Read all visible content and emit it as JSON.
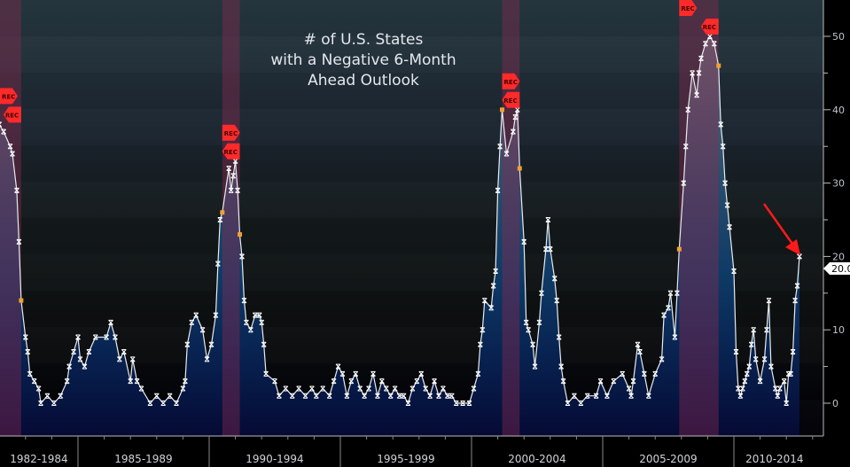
{
  "chart_data": {
    "type": "line",
    "title_lines": [
      "# of U.S. States",
      "with a Negative 6-Month",
      "Ahead Outlook"
    ],
    "xlabel": "",
    "ylabel": "",
    "ylim": [
      -4.5,
      59
    ],
    "y_ticks": [
      0,
      10,
      20,
      30,
      40,
      50
    ],
    "y_tick_labels": [
      "0",
      "10",
      "20",
      "30",
      "40",
      "50"
    ],
    "x_period_labels": [
      "1982-1984",
      "1985-1989",
      "1990-1994",
      "1995-1999",
      "2000-2004",
      "2005-2009",
      "2010-2014"
    ],
    "last_value_label": "20.0",
    "recession_flag_label": "REC",
    "recessions": [
      {
        "start": "1981-07",
        "end": "1982-11"
      },
      {
        "start": "1990-07",
        "end": "1991-03"
      },
      {
        "start": "2001-03",
        "end": "2001-11"
      },
      {
        "start": "2007-12",
        "end": "2009-06"
      }
    ],
    "colors": {
      "line": "#e8ecf0",
      "marker": "#ffffff",
      "recession_marker": "#f0a030",
      "recession_shade": "#8a2c50",
      "flag": "#ff2a2a",
      "arrow": "#ff1a1a"
    },
    "annotation": "red arrow pointing at latest value",
    "series": [
      {
        "x": [
          "1982-01",
          "1982-03",
          "1982-06",
          "1982-07",
          "1982-09",
          "1982-10",
          "1982-11",
          "1983-01",
          "1983-02",
          "1983-03",
          "1983-05",
          "1983-07",
          "1983-08",
          "1983-11",
          "1984-02",
          "1984-05",
          "1984-08",
          "1984-09",
          "1984-11",
          "1985-01",
          "1985-02",
          "1985-04",
          "1985-06",
          "1985-09",
          "1986-02",
          "1986-04",
          "1986-06",
          "1986-08",
          "1986-10",
          "1987-01",
          "1987-02",
          "1987-04",
          "1987-06",
          "1987-10",
          "1988-01",
          "1988-04",
          "1988-07",
          "1988-10",
          "1989-01",
          "1989-02",
          "1989-03",
          "1989-05",
          "1989-07",
          "1989-10",
          "1989-12",
          "1990-02",
          "1990-04",
          "1990-05",
          "1990-06",
          "1990-07",
          "1990-10",
          "1990-11",
          "1990-12",
          "1991-01",
          "1991-02",
          "1991-03",
          "1991-04",
          "1991-05",
          "1991-06",
          "1991-08",
          "1991-10",
          "1991-12",
          "1992-01",
          "1992-02",
          "1992-03",
          "1992-07",
          "1992-09",
          "1992-12",
          "1993-03",
          "1993-06",
          "1993-09",
          "1993-12",
          "1994-02",
          "1994-05",
          "1994-08",
          "1994-10",
          "1994-12",
          "1995-02",
          "1995-04",
          "1995-06",
          "1995-08",
          "1995-10",
          "1995-12",
          "1996-02",
          "1996-04",
          "1996-06",
          "1996-08",
          "1996-10",
          "1996-12",
          "1997-02",
          "1997-04",
          "1997-06",
          "1997-08",
          "1997-10",
          "1997-12",
          "1998-02",
          "1998-04",
          "1998-06",
          "1998-08",
          "1998-10",
          "1998-12",
          "1999-02",
          "1999-04",
          "1999-06",
          "1999-09",
          "1999-12",
          "2000-02",
          "2000-04",
          "2000-05",
          "2000-06",
          "2000-07",
          "2000-10",
          "2000-11",
          "2000-12",
          "2001-01",
          "2001-02",
          "2001-03",
          "2001-05",
          "2001-08",
          "2001-09",
          "2001-10",
          "2001-11",
          "2002-01",
          "2002-02",
          "2002-03",
          "2002-05",
          "2002-06",
          "2002-08",
          "2002-09",
          "2002-11",
          "2002-12",
          "2003-01",
          "2003-03",
          "2003-04",
          "2003-05",
          "2003-06",
          "2003-07",
          "2003-09",
          "2003-12",
          "2004-03",
          "2004-06",
          "2004-10",
          "2004-12",
          "2005-03",
          "2005-06",
          "2005-10",
          "2006-01",
          "2006-02",
          "2006-03",
          "2006-05",
          "2006-06",
          "2006-08",
          "2006-10",
          "2007-01",
          "2007-04",
          "2007-05",
          "2007-07",
          "2007-08",
          "2007-10",
          "2007-11",
          "2007-12",
          "2008-02",
          "2008-03",
          "2008-04",
          "2008-06",
          "2008-08",
          "2008-09",
          "2008-10",
          "2008-12",
          "2009-02",
          "2009-04",
          "2009-06",
          "2009-07",
          "2009-08",
          "2009-09",
          "2009-10",
          "2009-11",
          "2010-01",
          "2010-02",
          "2010-03",
          "2010-04",
          "2010-05",
          "2010-06",
          "2010-07",
          "2010-08",
          "2010-09",
          "2010-10",
          "2010-11",
          "2011-01",
          "2011-03",
          "2011-04",
          "2011-05",
          "2011-06",
          "2011-08",
          "2011-09",
          "2011-10",
          "2011-12",
          "2012-01",
          "2012-02",
          "2012-03",
          "2012-04",
          "2012-05",
          "2012-06",
          "2012-07"
        ],
        "y": [
          38,
          37,
          35,
          34,
          29,
          22,
          14,
          9,
          7,
          4,
          3,
          2,
          0,
          1,
          0,
          1,
          3,
          5,
          7,
          9,
          6,
          5,
          7,
          9,
          9,
          11,
          9,
          6,
          7,
          3,
          6,
          3,
          2,
          0,
          1,
          0,
          1,
          0,
          2,
          3,
          8,
          11,
          12,
          10,
          6,
          8,
          12,
          19,
          25,
          26,
          32,
          29,
          31,
          33,
          29,
          23,
          20,
          14,
          11,
          10,
          12,
          12,
          11,
          8,
          4,
          3,
          1,
          2,
          1,
          2,
          1,
          2,
          1,
          2,
          1,
          3,
          5,
          4,
          1,
          3,
          4,
          2,
          1,
          2,
          4,
          1,
          3,
          2,
          1,
          2,
          1,
          1,
          0,
          2,
          3,
          4,
          2,
          1,
          3,
          1,
          2,
          1,
          1,
          0,
          0,
          0,
          2,
          4,
          8,
          10,
          14,
          13,
          16,
          18,
          29,
          35,
          40,
          34,
          37,
          39,
          40,
          32,
          22,
          11,
          10,
          8,
          5,
          11,
          15,
          21,
          25,
          21,
          17,
          14,
          9,
          5,
          3,
          0,
          1,
          0,
          1,
          1,
          3,
          1,
          3,
          4,
          2,
          1,
          3,
          8,
          7,
          4,
          1,
          4,
          6,
          12,
          13,
          15,
          9,
          15,
          21,
          30,
          35,
          40,
          45,
          42,
          45,
          47,
          49,
          50,
          49,
          46,
          38,
          35,
          30,
          27,
          24,
          18,
          7,
          2,
          1,
          2,
          3,
          4,
          5,
          8,
          10,
          6,
          3,
          6,
          10,
          14,
          5,
          2,
          1,
          2,
          3,
          0,
          4,
          4,
          7,
          14,
          16,
          20
        ]
      }
    ]
  }
}
